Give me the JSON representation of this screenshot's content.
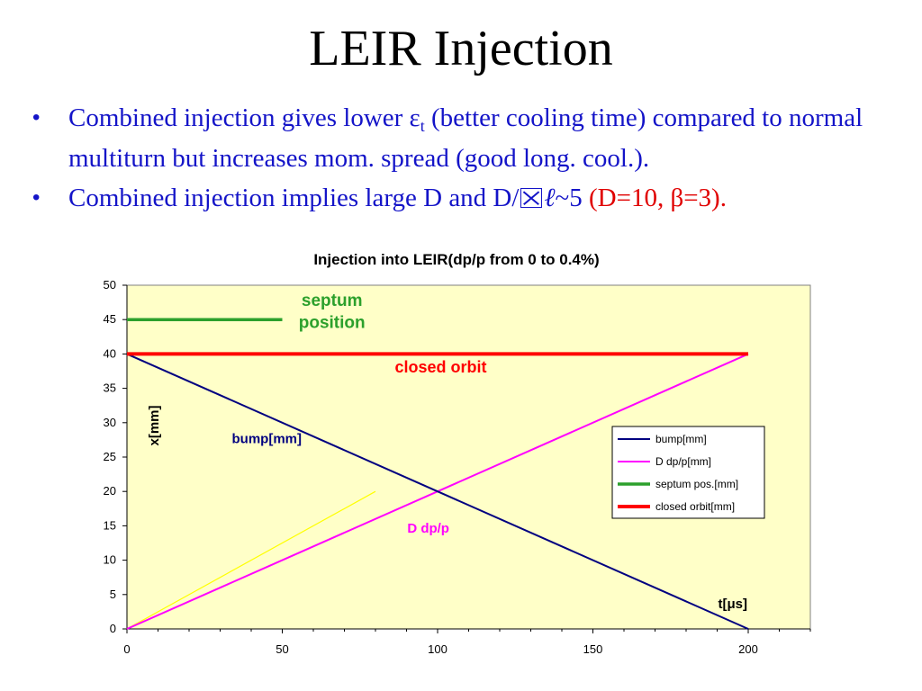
{
  "slide": {
    "title": "LEIR Injection",
    "bullets": [
      {
        "marker": "•",
        "text_a": "Combined injection gives lower ε",
        "sub": "t",
        "text_b": " (better cooling time) compared to normal multiturn but increases mom. spread (good long. cool.)."
      },
      {
        "marker": "•",
        "text_a": "Combined injection implies large D and D/",
        "glyph": "boxed-x-icon",
        "text_b": "~5 ",
        "red": "(D=10, β=3)."
      }
    ]
  },
  "colors": {
    "bullet_text": "#1414c8",
    "plot_bg": "#ffffc8",
    "bump": "#000080",
    "ddpp": "#ff00ff",
    "septum": "#2ca02c",
    "closed_orbit": "#ff0000",
    "yellow_line": "#ffff00"
  },
  "chart_data": {
    "type": "line",
    "title": "Injection into LEIR(dp/p from 0 to 0.4%)",
    "xlabel": "t[μs]",
    "ylabel": "x[mm]",
    "xlim": [
      0,
      220
    ],
    "ylim": [
      0,
      50
    ],
    "xticks": [
      0,
      50,
      100,
      150,
      200
    ],
    "yticks": [
      0,
      5,
      10,
      15,
      20,
      25,
      30,
      35,
      40,
      45,
      50
    ],
    "grid": false,
    "legend_position": "right",
    "series": [
      {
        "name": "bump[mm]",
        "key": "bump",
        "x": [
          0,
          200
        ],
        "y": [
          40,
          0
        ]
      },
      {
        "name": "D dp/p[mm]",
        "key": "ddpp",
        "x": [
          0,
          200
        ],
        "y": [
          0,
          40
        ]
      },
      {
        "name": "septum pos.[mm]",
        "key": "septum",
        "x": [
          0,
          50
        ],
        "y": [
          45,
          45
        ]
      },
      {
        "name": "closed orbit[mm]",
        "key": "closed_orbit",
        "x": [
          0,
          200
        ],
        "y": [
          40,
          40
        ]
      },
      {
        "key": "yellow",
        "x": [
          0,
          80
        ],
        "y": [
          0,
          20
        ]
      }
    ],
    "annotations": [
      {
        "text": "septum",
        "x": 66,
        "y": 47,
        "color_key": "septum",
        "size": 19
      },
      {
        "text": "position",
        "x": 66,
        "y": 43.8,
        "color_key": "septum",
        "size": 19
      },
      {
        "text": "closed orbit",
        "x": 101,
        "y": 37.3,
        "color_key": "closed_orbit",
        "size": 18
      },
      {
        "text": "bump[mm]",
        "x": 45,
        "y": 27,
        "color_key": "bump",
        "size": 15
      },
      {
        "text": "D dp/p",
        "x": 97,
        "y": 14,
        "color_key": "ddpp",
        "size": 15
      },
      {
        "text": "t[μs]",
        "x": 195,
        "y": 3,
        "color_key": "black",
        "size": 15
      }
    ]
  }
}
